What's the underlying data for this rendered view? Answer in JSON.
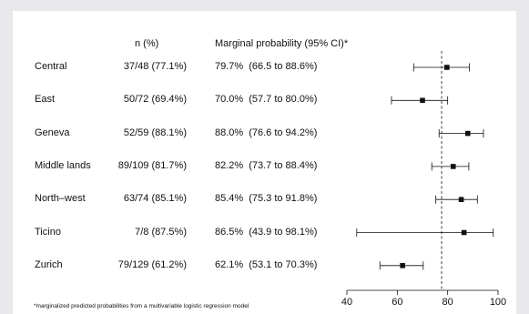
{
  "chart_data": {
    "type": "forest",
    "columns": {
      "n": "n (%)",
      "prob": "Marginal probability (95% CI)*"
    },
    "rows": [
      {
        "region": "Central",
        "n": "37/48 (77.1%)",
        "prob": "79.7%",
        "ci": "(66.5 to 88.6%)",
        "estimate": 79.7,
        "lower": 66.5,
        "upper": 88.6
      },
      {
        "region": "East",
        "n": "50/72 (69.4%)",
        "prob": "70.0%",
        "ci": "(57.7 to 80.0%)",
        "estimate": 70.0,
        "lower": 57.7,
        "upper": 80.0
      },
      {
        "region": "Geneva",
        "n": "52/59 (88.1%)",
        "prob": "88.0%",
        "ci": "(76.6 to 94.2%)",
        "estimate": 88.0,
        "lower": 76.6,
        "upper": 94.2
      },
      {
        "region": "Middle lands",
        "n": "89/109 (81.7%)",
        "prob": "82.2%",
        "ci": "(73.7 to 88.4%)",
        "estimate": 82.2,
        "lower": 73.7,
        "upper": 88.4
      },
      {
        "region": "North–west",
        "n": "63/74 (85.1%)",
        "prob": "85.4%",
        "ci": "(75.3 to 91.8%)",
        "estimate": 85.4,
        "lower": 75.3,
        "upper": 91.8
      },
      {
        "region": "Ticino",
        "n": "7/8 (87.5%)",
        "prob": "86.5%",
        "ci": "(43.9 to 98.1%)",
        "estimate": 86.5,
        "lower": 43.9,
        "upper": 98.1
      },
      {
        "region": "Zurich",
        "n": "79/129 (61.2%)",
        "prob": "62.1%",
        "ci": "(53.1 to 70.3%)",
        "estimate": 62.1,
        "lower": 53.1,
        "upper": 70.3
      }
    ],
    "reference_line": 77.6,
    "reference_line_style": "dashed",
    "xlim": [
      40,
      100
    ],
    "xticks": [
      40,
      60,
      80,
      100
    ],
    "footnote": "*marginalized predicted probabilities from a multivariable logistic regression model"
  }
}
